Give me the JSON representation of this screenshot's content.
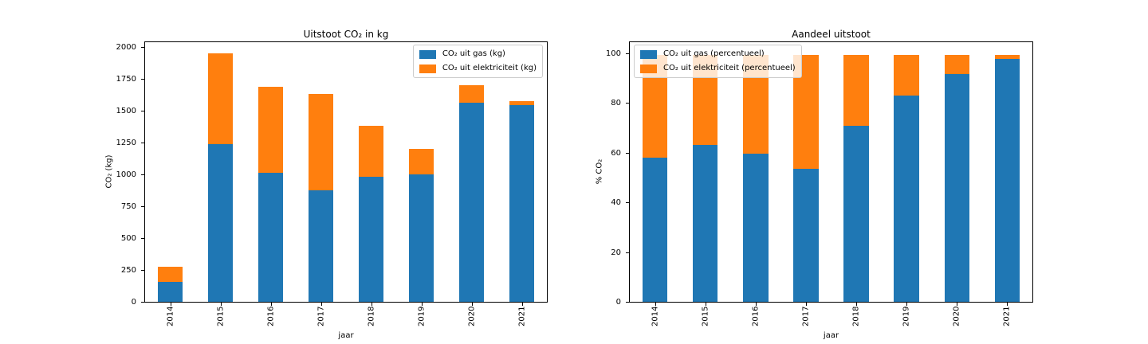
{
  "figure": {
    "background": "#ffffff"
  },
  "chart_data": [
    {
      "type": "bar",
      "stacked": true,
      "title": "Uitstoot CO₂ in kg",
      "xlabel": "jaar",
      "ylabel": "CO₂ (kg)",
      "categories": [
        "2014",
        "2015",
        "2016",
        "2017",
        "2018",
        "2019",
        "2020",
        "2021"
      ],
      "series": [
        {
          "name": "CO₂ uit gas (kg)",
          "color": "#1f77b4",
          "values": [
            160,
            1245,
            1020,
            880,
            990,
            1005,
            1575,
            1555
          ]
        },
        {
          "name": "CO₂ uit elektriciteit (kg)",
          "color": "#ff7f0e",
          "values": [
            115,
            715,
            680,
            760,
            400,
            200,
            135,
            30
          ]
        }
      ],
      "ylim": [
        0,
        2050
      ],
      "yticks": [
        0,
        250,
        500,
        750,
        1000,
        1250,
        1500,
        1750,
        2000
      ],
      "grid": false,
      "legend_position": "upper-right"
    },
    {
      "type": "bar",
      "stacked": true,
      "title": "Aandeel uitstoot",
      "xlabel": "jaar",
      "ylabel": "% CO₂",
      "categories": [
        "2014",
        "2015",
        "2016",
        "2017",
        "2018",
        "2019",
        "2020",
        "2021"
      ],
      "series": [
        {
          "name": "CO₂ uit gas (percentueel)",
          "color": "#1f77b4",
          "values": [
            58.2,
            63.5,
            60.0,
            53.7,
            71.2,
            83.4,
            92.1,
            98.1
          ]
        },
        {
          "name": "CO₂ uit elektriciteit (percentueel)",
          "color": "#ff7f0e",
          "values": [
            41.8,
            36.5,
            40.0,
            46.3,
            28.8,
            16.6,
            7.9,
            1.9
          ]
        }
      ],
      "ylim": [
        0,
        105
      ],
      "yticks": [
        0,
        20,
        40,
        60,
        80,
        100
      ],
      "grid": false,
      "legend_position": "upper-left"
    }
  ]
}
